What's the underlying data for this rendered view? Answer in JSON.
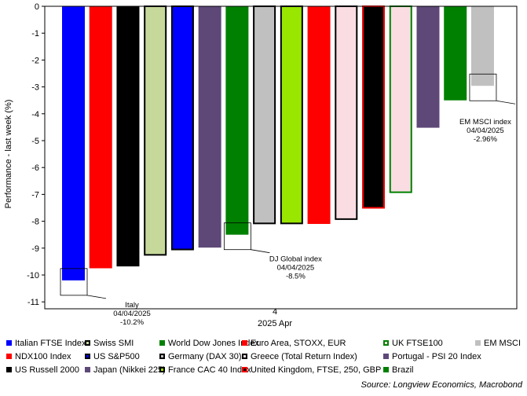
{
  "chart_data": {
    "type": "bar",
    "ylabel": "Performance - last week (%)",
    "ylim": [
      -11,
      0
    ],
    "yticks": [
      0,
      -1,
      -2,
      -3,
      -4,
      -5,
      -6,
      -7,
      -8,
      -9,
      -10,
      -11
    ],
    "xtick_labels": [
      "4",
      "2025 Apr"
    ],
    "grid": false,
    "series": [
      {
        "name": "Italian FTSE Index",
        "value": -10.2,
        "color": "#0000ff",
        "style": "solid"
      },
      {
        "name": "NDX100 Index",
        "value": -9.75,
        "color": "#ff0000",
        "style": "solid"
      },
      {
        "name": "US Russell 2000",
        "value": -9.68,
        "color": "#000000",
        "style": "solid"
      },
      {
        "name": "Swiss SMI",
        "value": -9.25,
        "color": "#c6d99a",
        "style": "outlined"
      },
      {
        "name": "US S&P500",
        "value": -9.05,
        "color": "#0000ff",
        "style": "outlined"
      },
      {
        "name": "Japan (Nikkei 225)",
        "value": -8.98,
        "color": "#5e4878",
        "style": "solid"
      },
      {
        "name": "World Dow Jones Index",
        "value": -8.5,
        "color": "#008000",
        "style": "solid"
      },
      {
        "name": "Germany (DAX 30)",
        "value": -8.08,
        "color": "#c0c0c0",
        "style": "outlined"
      },
      {
        "name": "France CAC 40 Index",
        "value": -8.08,
        "color": "#99e600",
        "style": "outlined"
      },
      {
        "name": "Euro Area, STOXX, EUR",
        "value": -8.1,
        "color": "#ff0000",
        "style": "solid"
      },
      {
        "name": "Greece (Total Return Index)",
        "value": -7.92,
        "color": "#f9dde3",
        "style": "outlined"
      },
      {
        "name": "United Kingdom, FTSE, 250, GBP",
        "value": -7.5,
        "color": "#000000",
        "style": "redoutline"
      },
      {
        "name": "UK FTSE100",
        "value": -6.92,
        "color": "#f9dde3",
        "style": "greenoutline"
      },
      {
        "name": "Portugal - PSI 20 Index",
        "value": -4.52,
        "color": "#5e4878",
        "style": "solid"
      },
      {
        "name": "Brazil",
        "value": -3.5,
        "color": "#008000",
        "style": "solid"
      },
      {
        "name": "EM MSCI",
        "value": -2.96,
        "color": "#c0c0c0",
        "style": "solid"
      }
    ],
    "annotations": [
      {
        "series_index": 0,
        "lines": [
          "Italy",
          "04/04/2025",
          "-10.2%"
        ]
      },
      {
        "series_index": 6,
        "lines": [
          "DJ Global index",
          "04/04/2025",
          "-8.5%"
        ]
      },
      {
        "series_index": 15,
        "lines": [
          "EM MSCI index",
          "04/04/2025",
          "-2.96%"
        ]
      }
    ]
  },
  "legend_rows": [
    [
      0,
      3,
      6,
      9,
      12,
      15
    ],
    [
      1,
      4,
      7,
      10,
      13
    ],
    [
      2,
      5,
      8,
      11,
      14
    ]
  ],
  "source": "Source: Longview Economics, Macrobond"
}
